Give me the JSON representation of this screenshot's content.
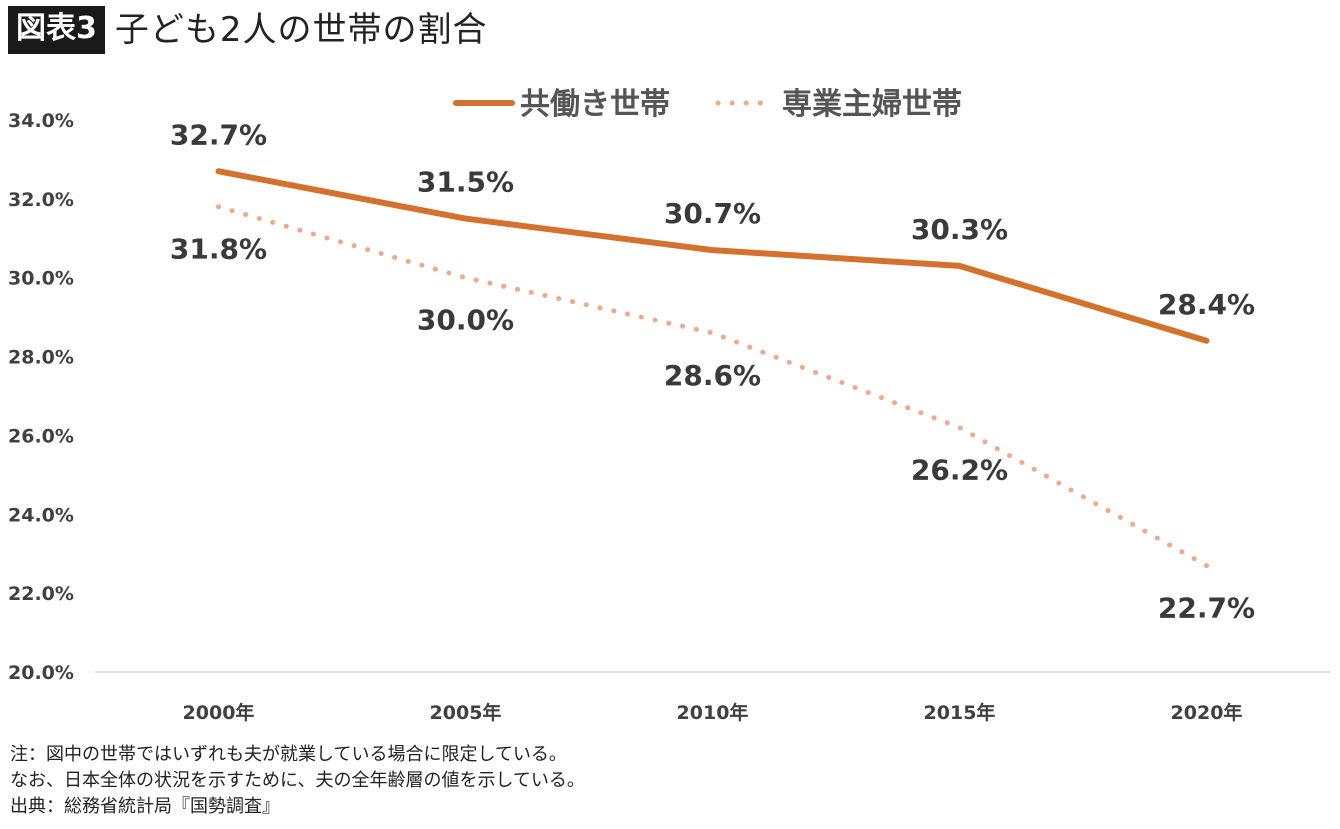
{
  "figure": {
    "badge": "図表3",
    "title": "子ども2人の世帯の割合"
  },
  "chart_data": {
    "type": "line",
    "categories": [
      "2000年",
      "2005年",
      "2010年",
      "2015年",
      "2020年"
    ],
    "ylim": [
      20,
      34
    ],
    "y_ticks": [
      "20.0%",
      "22.0%",
      "24.0%",
      "26.0%",
      "28.0%",
      "30.0%",
      "32.0%",
      "34.0%"
    ],
    "grid": false,
    "legend_position": "top",
    "series": [
      {
        "name": "共働き世帯",
        "values": [
          32.7,
          31.5,
          30.7,
          30.3,
          28.4
        ],
        "labels": [
          "32.7%",
          "31.5%",
          "30.7%",
          "30.3%",
          "28.4%"
        ],
        "style": "solid",
        "color": "#d4712d"
      },
      {
        "name": "専業主婦世帯",
        "values": [
          31.8,
          30.0,
          28.6,
          26.2,
          22.7
        ],
        "labels": [
          "31.8%",
          "30.0%",
          "28.6%",
          "26.2%",
          "22.7%"
        ],
        "style": "dotted",
        "color": "#f0a98a"
      }
    ]
  },
  "notes": [
    "注：図中の世帯ではいずれも夫が就業している場合に限定している。",
    "なお、日本全体の状況を示すために、夫の全年齢層の値を示している。",
    "出典：総務省統計局『国勢調査』"
  ]
}
